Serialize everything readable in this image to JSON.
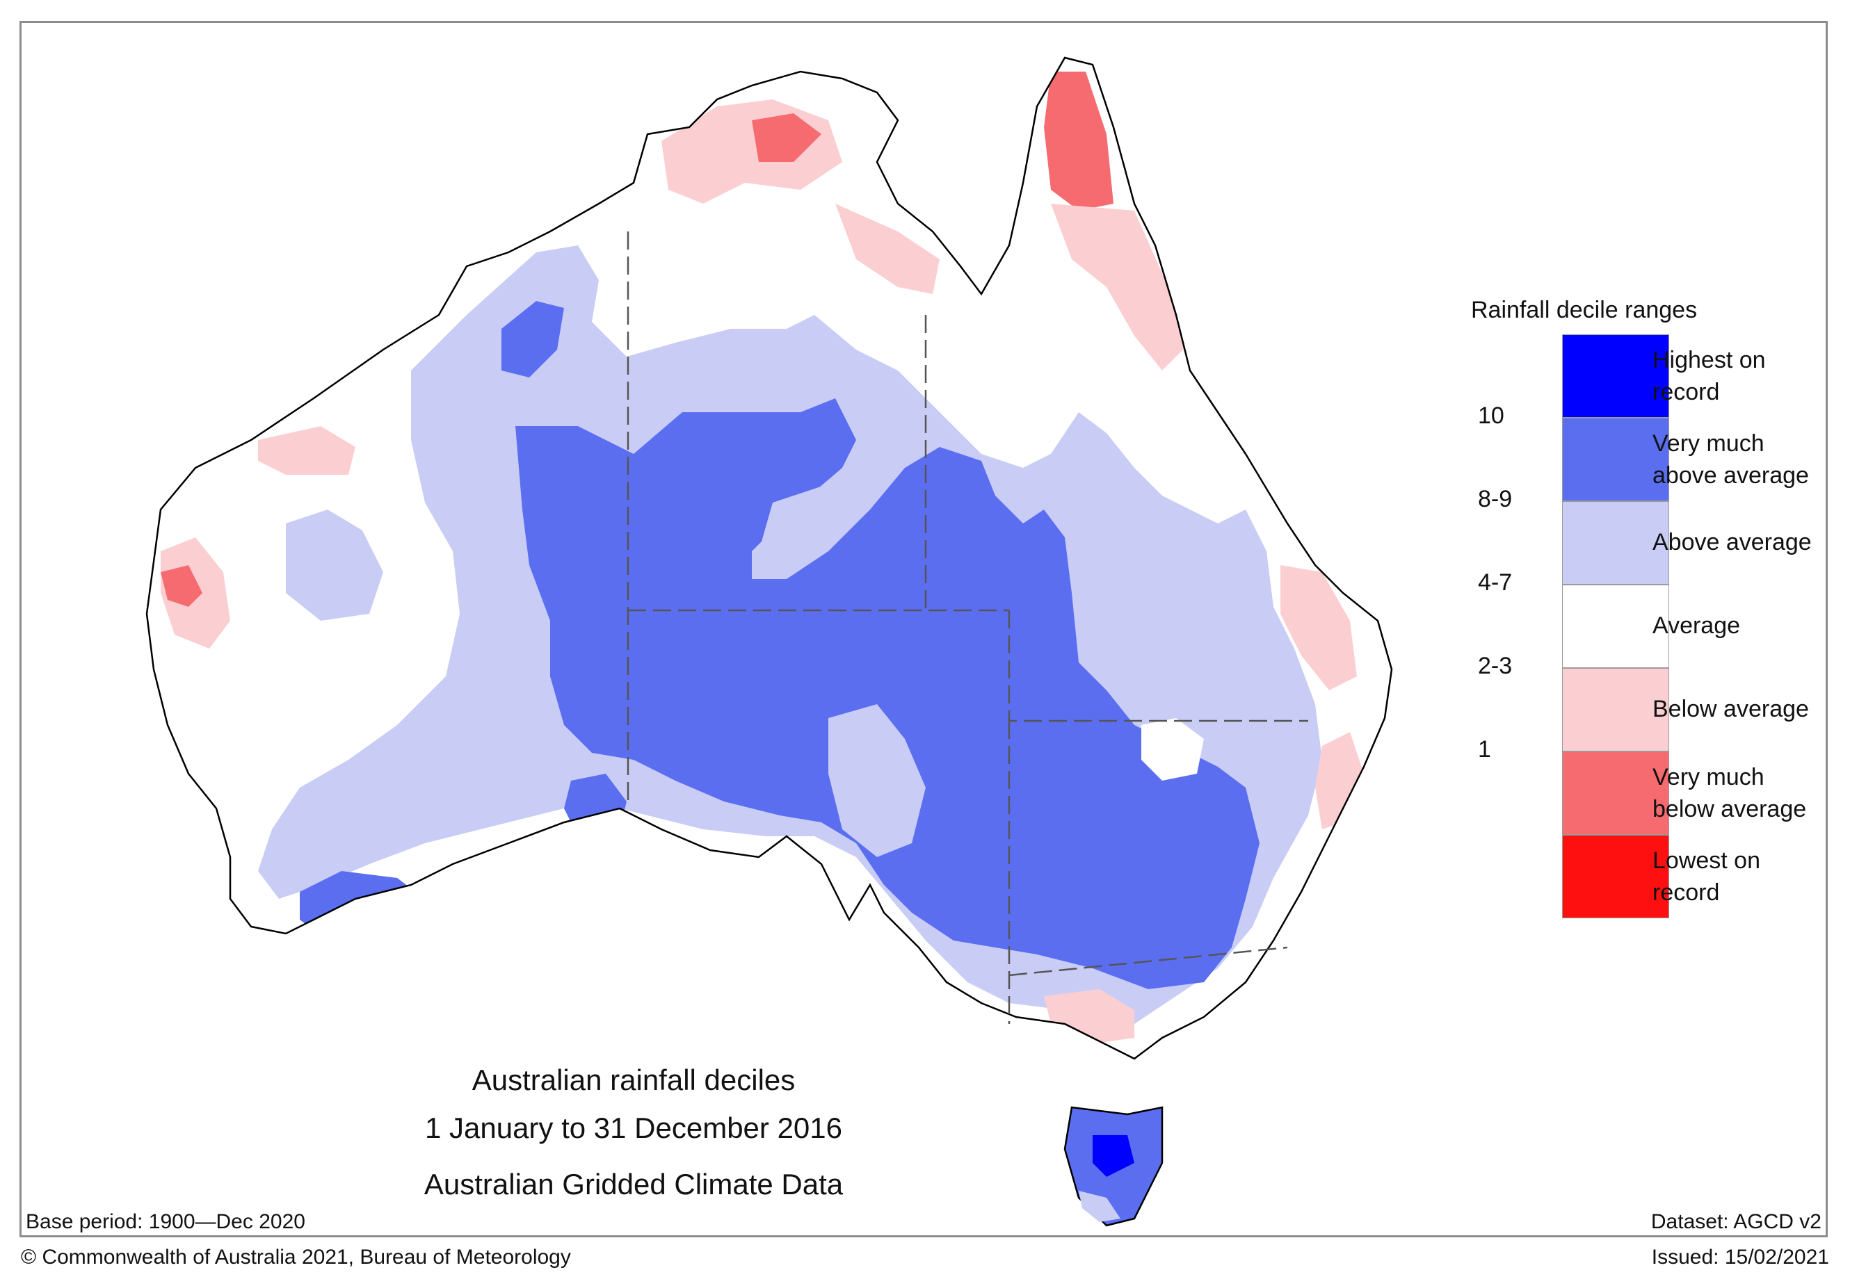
{
  "title": {
    "line1": "Australian rainfall deciles",
    "line2": "1 January to 31 December 2016",
    "line3": "Australian Gridded Climate Data"
  },
  "legend": {
    "title": "Rainfall decile ranges",
    "categories": [
      {
        "label_1": "Highest on",
        "label_2": "record",
        "color": "#0000ff",
        "decile": ""
      },
      {
        "label_1": "Very much",
        "label_2": "above average",
        "color": "#5b6ef0",
        "decile": "10"
      },
      {
        "label_1": "Above average",
        "label_2": "",
        "color": "#c9cdf5",
        "decile": "8-9"
      },
      {
        "label_1": "Average",
        "label_2": "",
        "color": "#ffffff",
        "decile": "4-7"
      },
      {
        "label_1": "Below average",
        "label_2": "",
        "color": "#fbcfd2",
        "decile": "2-3"
      },
      {
        "label_1": "Very much",
        "label_2": "below average",
        "color": "#f56b6f",
        "decile": "1"
      },
      {
        "label_1": "Lowest on",
        "label_2": "record",
        "color": "#ff1010",
        "decile": ""
      }
    ]
  },
  "footer": {
    "base_period": "Base period: 1900—Dec 2020",
    "dataset": "Dataset: AGCD v2",
    "copyright": "© Commonwealth of Australia 2021, Bureau of Meteorology",
    "issued": "Issued: 15/02/2021"
  },
  "colors": {
    "highest": "#0000ff",
    "very_much_above": "#5b6ef0",
    "above": "#c9cdf5",
    "average": "#ffffff",
    "below": "#fbcfd2",
    "very_much_below": "#f56b6f",
    "lowest": "#ff1010",
    "coast": "#000000",
    "border": "#555555"
  }
}
